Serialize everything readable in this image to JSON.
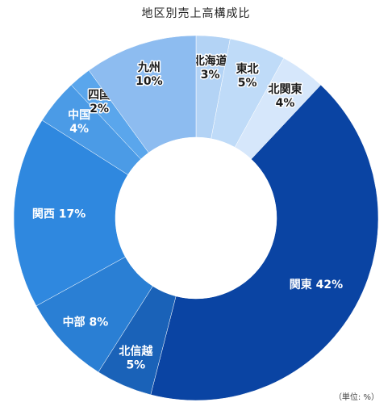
{
  "chart_data": {
    "type": "pie",
    "title": "地区別売上高構成比",
    "unit_note": "（単位: %）",
    "categories": [
      "北海道",
      "東北",
      "北関東",
      "関東",
      "北信越",
      "中部",
      "関西",
      "中国",
      "四国",
      "九州"
    ],
    "values": [
      3,
      5,
      4,
      42,
      5,
      8,
      17,
      4,
      2,
      10
    ],
    "value_labels": [
      "3%",
      "5%",
      "4%",
      "42%",
      "5%",
      "8%",
      "17%",
      "4%",
      "2%",
      "10%"
    ],
    "colors": [
      "#b3d3f5",
      "#bfdbf8",
      "#d6e7fb",
      "#0a44a3",
      "#1a62b8",
      "#2a7fd4",
      "#2f88df",
      "#4b9be6",
      "#5aa6ec",
      "#8dbcf0"
    ],
    "donut": true
  }
}
